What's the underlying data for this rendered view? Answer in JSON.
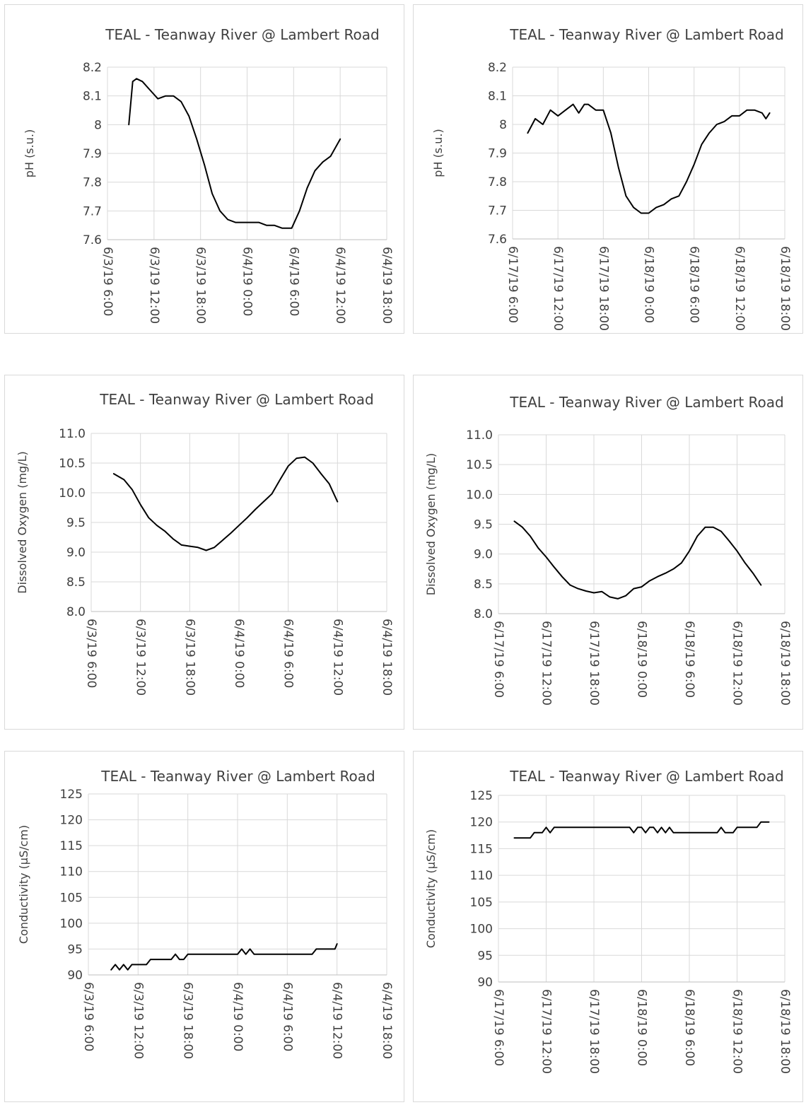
{
  "chart_data": [
    {
      "type": "line",
      "title": "TEAL - Teanway River @ Lambert Road",
      "ylabel": "pH (s.u.)",
      "xlabel": "",
      "x_ticks": [
        "6/3/19 6:00",
        "6/3/19 12:00",
        "6/3/19 18:00",
        "6/4/19 0:00",
        "6/4/19 6:00",
        "6/4/19 12:00",
        "6/4/19 18:00"
      ],
      "xlim": [
        "6/3/19 6:00",
        "6/4/19 18:00"
      ],
      "ylim": [
        7.6,
        8.2
      ],
      "y_ticks": [
        7.6,
        7.7,
        7.8,
        7.9,
        8.0,
        8.1,
        8.2
      ],
      "y_tick_labels": [
        "7.6",
        "7.7",
        "7.8",
        "7.9",
        "8",
        "8.1",
        "8.2"
      ],
      "grid": true,
      "series": [
        {
          "x": [
            "6/3/19 8:45",
            "6/3/19 9:15",
            "6/3/19 9:45",
            "6/3/19 10:30",
            "6/3/19 11:30",
            "6/3/19 12:30",
            "6/3/19 13:30",
            "6/3/19 14:30",
            "6/3/19 15:30",
            "6/3/19 16:30",
            "6/3/19 17:30",
            "6/3/19 18:30",
            "6/3/19 19:30",
            "6/3/19 20:30",
            "6/3/19 21:30",
            "6/3/19 22:30",
            "6/3/19 23:30",
            "6/4/19 0:30",
            "6/4/19 1:30",
            "6/4/19 2:30",
            "6/4/19 3:30",
            "6/4/19 4:30",
            "6/4/19 5:00",
            "6/4/19 5:45",
            "6/4/19 6:45",
            "6/4/19 7:45",
            "6/4/19 8:45",
            "6/4/19 9:45",
            "6/4/19 10:45",
            "6/4/19 12:00"
          ],
          "values": [
            8.0,
            8.15,
            8.16,
            8.15,
            8.12,
            8.09,
            8.1,
            8.1,
            8.08,
            8.03,
            7.95,
            7.86,
            7.76,
            7.7,
            7.67,
            7.66,
            7.66,
            7.66,
            7.66,
            7.65,
            7.65,
            7.64,
            7.64,
            7.64,
            7.7,
            7.78,
            7.84,
            7.87,
            7.89,
            7.95
          ]
        }
      ]
    },
    {
      "type": "line",
      "title": "TEAL - Teanway River @ Lambert Road",
      "ylabel": "pH (s.u.)",
      "xlabel": "",
      "x_ticks": [
        "6/17/19 6:00",
        "6/17/19 12:00",
        "6/17/19 18:00",
        "6/18/19 0:00",
        "6/18/19 6:00",
        "6/18/19 12:00",
        "6/18/19 18:00"
      ],
      "xlim": [
        "6/17/19 6:00",
        "6/18/19 18:00"
      ],
      "ylim": [
        7.6,
        8.2
      ],
      "y_ticks": [
        7.6,
        7.7,
        7.8,
        7.9,
        8.0,
        8.1,
        8.2
      ],
      "y_tick_labels": [
        "7.6",
        "7.7",
        "7.8",
        "7.9",
        "8",
        "8.1",
        "8.2"
      ],
      "grid": true,
      "series": [
        {
          "x": [
            "6/17/19 8:00",
            "6/17/19 9:00",
            "6/17/19 10:00",
            "6/17/19 11:00",
            "6/17/19 12:00",
            "6/17/19 13:00",
            "6/17/19 14:00",
            "6/17/19 14:45",
            "6/17/19 15:30",
            "6/17/19 16:00",
            "6/17/19 17:00",
            "6/17/19 18:00",
            "6/17/19 19:00",
            "6/17/19 20:00",
            "6/17/19 21:00",
            "6/17/19 22:00",
            "6/17/19 23:00",
            "6/18/19 0:00",
            "6/18/19 1:00",
            "6/18/19 2:00",
            "6/18/19 3:00",
            "6/18/19 4:00",
            "6/18/19 5:00",
            "6/18/19 6:00",
            "6/18/19 7:00",
            "6/18/19 8:00",
            "6/18/19 9:00",
            "6/18/19 10:00",
            "6/18/19 11:00",
            "6/18/19 12:00",
            "6/18/19 13:00",
            "6/18/19 14:00",
            "6/18/19 15:00",
            "6/18/19 15:30",
            "6/18/19 16:00"
          ],
          "values": [
            7.97,
            8.02,
            8.0,
            8.05,
            8.03,
            8.05,
            8.07,
            8.04,
            8.07,
            8.07,
            8.05,
            8.05,
            7.97,
            7.85,
            7.75,
            7.71,
            7.69,
            7.69,
            7.71,
            7.72,
            7.74,
            7.75,
            7.8,
            7.86,
            7.93,
            7.97,
            8.0,
            8.01,
            8.03,
            8.03,
            8.05,
            8.05,
            8.04,
            8.02,
            8.04
          ]
        }
      ]
    },
    {
      "type": "line",
      "title": "TEAL - Teanway River @ Lambert Road",
      "ylabel": "Dissolved Oxygen (mg/L)",
      "xlabel": "",
      "x_ticks": [
        "6/3/19 6:00",
        "6/3/19 12:00",
        "6/3/19 18:00",
        "6/4/19 0:00",
        "6/4/19 6:00",
        "6/4/19 12:00",
        "6/4/19 18:00"
      ],
      "xlim": [
        "6/3/19 6:00",
        "6/4/19 18:00"
      ],
      "ylim": [
        8.0,
        11.0
      ],
      "y_ticks": [
        8.0,
        8.5,
        9.0,
        9.5,
        10.0,
        10.5,
        11.0
      ],
      "y_tick_labels": [
        "8.0",
        "8.5",
        "9.0",
        "9.5",
        "10.0",
        "10.5",
        "11.0"
      ],
      "grid": true,
      "series": [
        {
          "x": [
            "6/3/19 8:45",
            "6/3/19 10:00",
            "6/3/19 11:00",
            "6/3/19 12:00",
            "6/3/19 13:00",
            "6/3/19 14:00",
            "6/3/19 15:00",
            "6/3/19 16:00",
            "6/3/19 17:00",
            "6/3/19 18:00",
            "6/3/19 19:00",
            "6/3/19 20:00",
            "6/3/19 21:00",
            "6/3/19 22:00",
            "6/3/19 23:00",
            "6/4/19 0:00",
            "6/4/19 1:00",
            "6/4/19 2:00",
            "6/4/19 3:00",
            "6/4/19 4:00",
            "6/4/19 5:00",
            "6/4/19 6:00",
            "6/4/19 7:00",
            "6/4/19 8:00",
            "6/4/19 9:00",
            "6/4/19 10:00",
            "6/4/19 11:00",
            "6/4/19 12:00"
          ],
          "values": [
            10.32,
            10.22,
            10.05,
            9.8,
            9.58,
            9.45,
            9.35,
            9.22,
            9.12,
            9.1,
            9.08,
            9.03,
            9.08,
            9.2,
            9.32,
            9.45,
            9.58,
            9.72,
            9.85,
            9.98,
            10.22,
            10.45,
            10.58,
            10.6,
            10.5,
            10.32,
            10.15,
            9.85
          ]
        }
      ]
    },
    {
      "type": "line",
      "title": "TEAL - Teanway River @ Lambert Road",
      "ylabel": "Dissolved Oxygen (mg/L)",
      "xlabel": "",
      "x_ticks": [
        "6/17/19 6:00",
        "6/17/19 12:00",
        "6/17/19 18:00",
        "6/18/19 0:00",
        "6/18/19 6:00",
        "6/18/19 12:00",
        "6/18/19 18:00"
      ],
      "xlim": [
        "6/17/19 6:00",
        "6/18/19 18:00"
      ],
      "ylim": [
        8.0,
        11.0
      ],
      "y_ticks": [
        8.0,
        8.5,
        9.0,
        9.5,
        10.0,
        10.5,
        11.0
      ],
      "y_tick_labels": [
        "8.0",
        "8.5",
        "9.0",
        "9.5",
        "10.0",
        "10.5",
        "11.0"
      ],
      "grid": true,
      "series": [
        {
          "x": [
            "6/17/19 8:00",
            "6/17/19 9:00",
            "6/17/19 10:00",
            "6/17/19 11:00",
            "6/17/19 12:00",
            "6/17/19 13:00",
            "6/17/19 14:00",
            "6/17/19 15:00",
            "6/17/19 16:00",
            "6/17/19 17:00",
            "6/17/19 18:00",
            "6/17/19 19:00",
            "6/17/19 20:00",
            "6/17/19 21:00",
            "6/17/19 22:00",
            "6/17/19 23:00",
            "6/18/19 0:00",
            "6/18/19 1:00",
            "6/18/19 2:00",
            "6/18/19 3:00",
            "6/18/19 4:00",
            "6/18/19 5:00",
            "6/18/19 6:00",
            "6/18/19 7:00",
            "6/18/19 8:00",
            "6/18/19 9:00",
            "6/18/19 10:00",
            "6/18/19 11:00",
            "6/18/19 12:00",
            "6/18/19 13:00",
            "6/18/19 14:00",
            "6/18/19 15:00"
          ],
          "values": [
            9.55,
            9.45,
            9.3,
            9.1,
            8.95,
            8.78,
            8.62,
            8.48,
            8.42,
            8.38,
            8.35,
            8.37,
            8.28,
            8.25,
            8.3,
            8.42,
            8.45,
            8.55,
            8.62,
            8.68,
            8.75,
            8.85,
            9.05,
            9.3,
            9.45,
            9.45,
            9.38,
            9.22,
            9.05,
            8.85,
            8.68,
            8.48
          ]
        }
      ]
    },
    {
      "type": "line",
      "title": "TEAL - Teanway River @ Lambert Road",
      "ylabel": "Conductivity (µS/cm)",
      "xlabel": "",
      "x_ticks": [
        "6/3/19 6:00",
        "6/3/19 12:00",
        "6/3/19 18:00",
        "6/4/19 0:00",
        "6/4/19 6:00",
        "6/4/19 12:00",
        "6/4/19 18:00"
      ],
      "xlim": [
        "6/3/19 6:00",
        "6/4/19 18:00"
      ],
      "ylim": [
        90,
        125
      ],
      "y_ticks": [
        90,
        95,
        100,
        105,
        110,
        115,
        120,
        125
      ],
      "y_tick_labels": [
        "90",
        "95",
        "100",
        "105",
        "110",
        "115",
        "120",
        "125"
      ],
      "grid": true,
      "series": [
        {
          "x": [
            "6/3/19 8:45",
            "6/3/19 9:15",
            "6/3/19 9:45",
            "6/3/19 10:15",
            "6/3/19 10:45",
            "6/3/19 11:15",
            "6/3/19 13:00",
            "6/3/19 13:30",
            "6/3/19 16:00",
            "6/3/19 16:30",
            "6/3/19 17:00",
            "6/3/19 17:30",
            "6/3/19 18:00",
            "6/4/19 0:00",
            "6/4/19 0:30",
            "6/4/19 1:00",
            "6/4/19 1:30",
            "6/4/19 2:00",
            "6/4/19 9:00",
            "6/4/19 9:30",
            "6/4/19 11:45",
            "6/4/19 12:00"
          ],
          "values": [
            91,
            92,
            91,
            92,
            91,
            92,
            92,
            93,
            93,
            94,
            93,
            93,
            94,
            94,
            95,
            94,
            95,
            94,
            94,
            95,
            95,
            96
          ]
        }
      ]
    },
    {
      "type": "line",
      "title": "TEAL - Teanway River @ Lambert Road",
      "ylabel": "Conductivity (µS/cm)",
      "xlabel": "",
      "x_ticks": [
        "6/17/19 6:00",
        "6/17/19 12:00",
        "6/17/19 18:00",
        "6/18/19 0:00",
        "6/18/19 6:00",
        "6/18/19 12:00",
        "6/18/19 18:00"
      ],
      "xlim": [
        "6/17/19 6:00",
        "6/18/19 18:00"
      ],
      "ylim": [
        90,
        125
      ],
      "y_ticks": [
        90,
        95,
        100,
        105,
        110,
        115,
        120,
        125
      ],
      "y_tick_labels": [
        "90",
        "95",
        "100",
        "105",
        "110",
        "115",
        "120",
        "125"
      ],
      "grid": true,
      "series": [
        {
          "x": [
            "6/17/19 8:00",
            "6/17/19 10:00",
            "6/17/19 10:30",
            "6/17/19 11:30",
            "6/17/19 12:00",
            "6/17/19 12:30",
            "6/17/19 13:00",
            "6/17/19 14:00",
            "6/17/19 22:30",
            "6/17/19 23:00",
            "6/17/19 23:30",
            "6/18/19 0:00",
            "6/18/19 0:30",
            "6/18/19 1:00",
            "6/18/19 1:30",
            "6/18/19 2:00",
            "6/18/19 2:30",
            "6/18/19 3:00",
            "6/18/19 3:30",
            "6/18/19 4:00",
            "6/18/19 4:30",
            "6/18/19 5:00",
            "6/18/19 9:30",
            "6/18/19 10:00",
            "6/18/19 10:30",
            "6/18/19 11:30",
            "6/18/19 12:00",
            "6/18/19 14:30",
            "6/18/19 15:00",
            "6/18/19 16:00"
          ],
          "values": [
            117,
            117,
            118,
            118,
            119,
            118,
            119,
            119,
            119,
            118,
            119,
            119,
            118,
            119,
            119,
            118,
            119,
            118,
            119,
            118,
            118,
            118,
            118,
            119,
            118,
            118,
            119,
            119,
            120,
            120
          ]
        }
      ]
    }
  ]
}
